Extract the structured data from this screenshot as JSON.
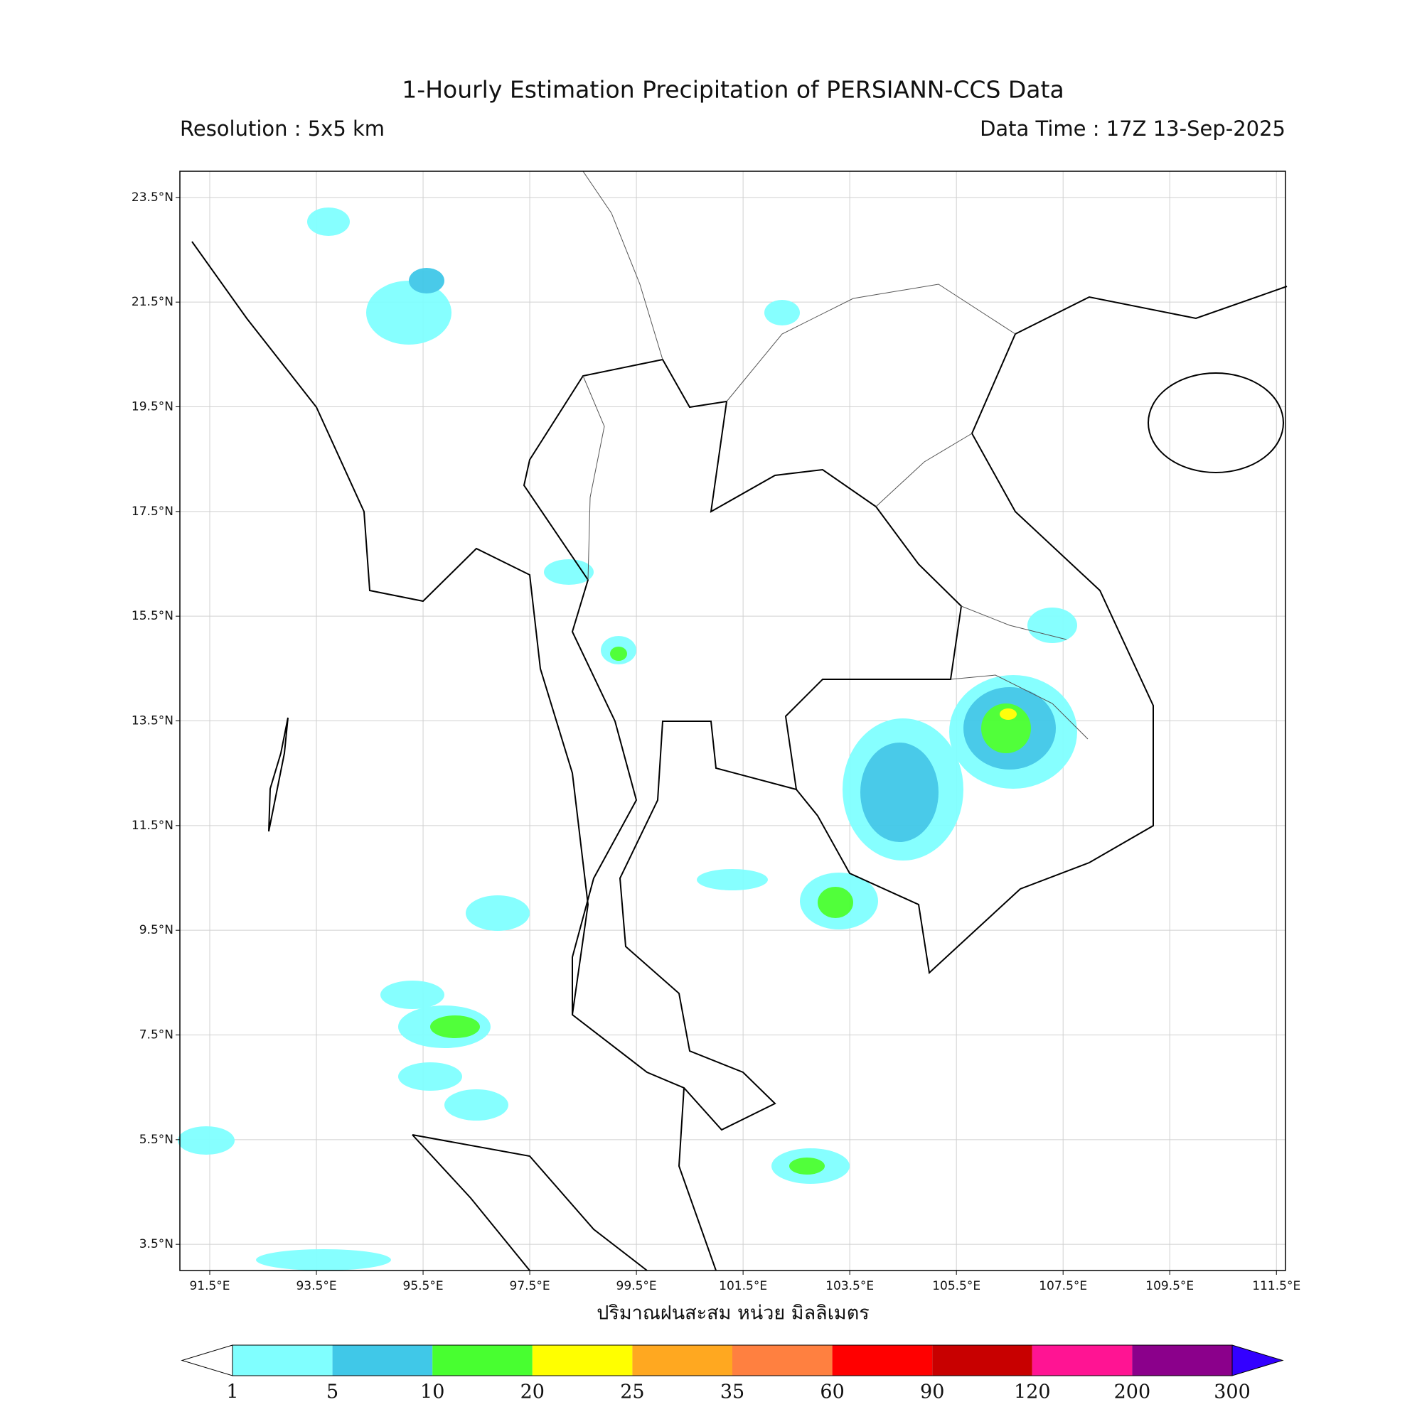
{
  "title": "1-Hourly Estimation Precipitation of PERSIANN-CCS Data",
  "resolution": "Resolution : 5x5 km",
  "data_time": "Data Time : 17Z 13-Sep-2025",
  "map": {
    "xlim": [
      90.94,
      111.67
    ],
    "ylim": [
      3,
      24
    ],
    "xticks": [
      {
        "value": 91.5,
        "label": "91.5°E"
      },
      {
        "value": 93.5,
        "label": "93.5°E"
      },
      {
        "value": 95.5,
        "label": "95.5°E"
      },
      {
        "value": 97.5,
        "label": "97.5°E"
      },
      {
        "value": 99.5,
        "label": "99.5°E"
      },
      {
        "value": 101.5,
        "label": "101.5°E"
      },
      {
        "value": 103.5,
        "label": "103.5°E"
      },
      {
        "value": 105.5,
        "label": "105.5°E"
      },
      {
        "value": 107.5,
        "label": "107.5°E"
      },
      {
        "value": 109.5,
        "label": "109.5°E"
      },
      {
        "value": 111.5,
        "label": "111.5°E"
      }
    ],
    "yticks": [
      {
        "value": 23.5,
        "label": "23.5°N"
      },
      {
        "value": 21.5,
        "label": "21.5°N"
      },
      {
        "value": 19.5,
        "label": "19.5°N"
      },
      {
        "value": 17.5,
        "label": "17.5°N"
      },
      {
        "value": 15.5,
        "label": "15.5°N"
      },
      {
        "value": 13.5,
        "label": "13.5°N"
      },
      {
        "value": 11.5,
        "label": "11.5°N"
      },
      {
        "value": 9.5,
        "label": "9.5°N"
      },
      {
        "value": 7.5,
        "label": "7.5°N"
      },
      {
        "value": 5.5,
        "label": "5.5°N"
      },
      {
        "value": 3.5,
        "label": "3.5°N"
      }
    ],
    "grid": true,
    "xlabel": "ปริมาณฝนสะสม หน่วย มิลลิเมตร"
  },
  "colorbar": {
    "levels": [
      1,
      5,
      10,
      20,
      25,
      35,
      60,
      90,
      120,
      200,
      300
    ],
    "colors": [
      "#80ffff",
      "#40c8e8",
      "#48ff30",
      "#ffff00",
      "#ffa820",
      "#ff8040",
      "#ff0000",
      "#c80000",
      "#ff1493",
      "#8b008b"
    ],
    "under_color": "#ffffff",
    "over_color": "#3300ff"
  }
}
